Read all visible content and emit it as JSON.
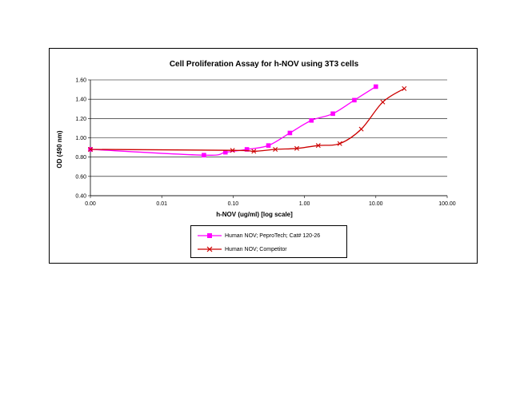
{
  "chart_data": {
    "type": "line",
    "title": "Cell Proliferation Assay for h-NOV using 3T3 cells",
    "xlabel": "h-NOV (ug/ml) [log scale]",
    "ylabel": "OD (490 nm)",
    "x_scale": "log",
    "xlim": [
      0.001,
      100
    ],
    "ylim": [
      0.4,
      1.6
    ],
    "x_ticks": [
      0.001,
      0.01,
      0.1,
      1,
      10,
      100
    ],
    "x_tick_labels": [
      "0.00",
      "0.01",
      "0.10",
      "1.00",
      "10.00",
      "100.00"
    ],
    "y_ticks": [
      0.4,
      0.6,
      0.8,
      1.0,
      1.2,
      1.4,
      1.6
    ],
    "y_tick_labels": [
      "0.40",
      "0.60",
      "0.80",
      "1.00",
      "1.20",
      "1.40",
      "1.60"
    ],
    "grid": "horizontal",
    "legend_position": "bottom",
    "series": [
      {
        "name": "Human NOV; PeproTech; Cat# 120-26",
        "color": "#ff00ff",
        "marker": "square",
        "x": [
          0.001,
          0.039,
          0.078,
          0.156,
          0.3125,
          0.625,
          1.25,
          2.5,
          5,
          10
        ],
        "y": [
          0.88,
          0.82,
          0.85,
          0.88,
          0.92,
          1.05,
          1.18,
          1.25,
          1.39,
          1.53
        ]
      },
      {
        "name": "Human NOV; Competitor",
        "color": "#cc0000",
        "marker": "x",
        "x": [
          0.001,
          0.098,
          0.195,
          0.39,
          0.78,
          1.56,
          3.125,
          6.25,
          12.5,
          25
        ],
        "y": [
          0.88,
          0.87,
          0.86,
          0.88,
          0.89,
          0.92,
          0.94,
          1.09,
          1.37,
          1.51
        ]
      }
    ]
  }
}
